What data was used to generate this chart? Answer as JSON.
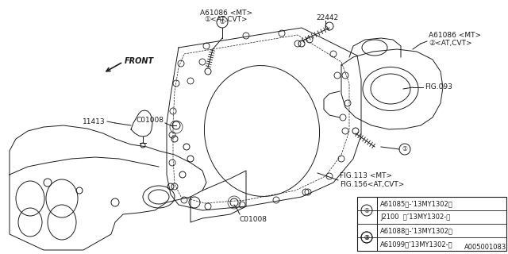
{
  "bg_color": "#ffffff",
  "line_color": "#1a1a1a",
  "lw": 0.7,
  "labels": {
    "A61086_MT_top": "A61086 <MT>",
    "A61086_AT_top": "①<AT,CVT>",
    "part_22442": "22442",
    "A61086_MT_right": "A61086 <MT>",
    "A61086_AT_right": "②<AT,CVT>",
    "FIG093": "FIG.093",
    "FIG113": "FIG.113 <MT>",
    "FIG156": "FIG.156<AT,CVT>",
    "C01008_left": "C01008",
    "C01008_bottom": "C01008",
    "part_11413": "11413",
    "FRONT": "FRONT",
    "legend_1a": "A61085（-’13MY1302）",
    "legend_1b": "J2100  （’13MY1302-）",
    "legend_2a": "A61088（-’13MY1302）",
    "legend_2b": "A61099（’13MY1302-）",
    "diagram_code": "A005001083"
  }
}
